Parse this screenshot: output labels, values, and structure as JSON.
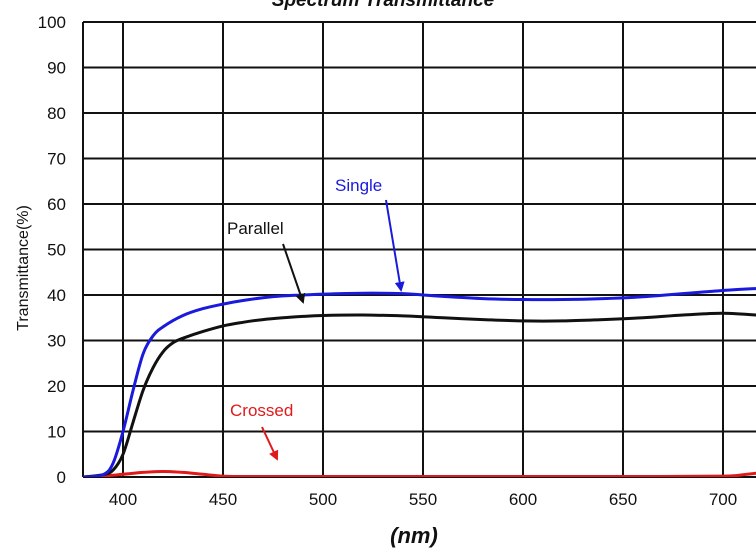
{
  "chart_data": {
    "type": "line",
    "title": "Spectrum Transmittance",
    "xlabel": "(nm)",
    "ylabel": "Transmittance(%)",
    "xlim": [
      380,
      720
    ],
    "ylim": [
      0,
      100
    ],
    "xticks": [
      400,
      450,
      500,
      550,
      600,
      650,
      700
    ],
    "yticks": [
      0,
      10,
      20,
      30,
      40,
      50,
      60,
      70,
      80,
      90,
      100
    ],
    "grid": true,
    "series": [
      {
        "name": "Single",
        "color": "#1a1adc",
        "x": [
          380,
          390,
          395,
          400,
          405,
          410,
          415,
          420,
          430,
          440,
          450,
          460,
          470,
          480,
          490,
          500,
          520,
          540,
          550,
          560,
          580,
          600,
          620,
          640,
          660,
          680,
          700,
          720
        ],
        "y": [
          0,
          0.5,
          3,
          10,
          19,
          27,
          31,
          33,
          35.5,
          37,
          38,
          38.8,
          39.4,
          39.8,
          40,
          40.2,
          40.4,
          40.3,
          40,
          39.7,
          39.2,
          39,
          39,
          39.2,
          39.6,
          40.3,
          41,
          41.5
        ]
      },
      {
        "name": "Parallel",
        "color": "#111111",
        "x": [
          380,
          390,
          395,
          400,
          405,
          410,
          415,
          420,
          425,
          430,
          440,
          450,
          460,
          470,
          480,
          490,
          500,
          520,
          540,
          560,
          580,
          600,
          620,
          640,
          660,
          680,
          700,
          720
        ],
        "y": [
          0,
          0.5,
          1.5,
          5,
          12,
          19,
          24,
          27.5,
          29.5,
          30.5,
          32,
          33.2,
          34,
          34.6,
          35,
          35.3,
          35.5,
          35.6,
          35.4,
          35,
          34.6,
          34.3,
          34.3,
          34.6,
          35,
          35.6,
          36,
          35.5
        ]
      },
      {
        "name": "Crossed",
        "color": "#e01a1a",
        "x": [
          380,
          390,
          400,
          410,
          420,
          430,
          440,
          450,
          460,
          500,
          550,
          600,
          650,
          700,
          710,
          720
        ],
        "y": [
          0,
          0.2,
          0.6,
          1,
          1.2,
          1.0,
          0.6,
          0.2,
          0.1,
          0.1,
          0.1,
          0.1,
          0.1,
          0.2,
          0.5,
          1.0
        ]
      }
    ],
    "annotations": [
      {
        "text": "Single",
        "series": "Single"
      },
      {
        "text": "Parallel",
        "series": "Parallel"
      },
      {
        "text": "Crossed",
        "series": "Crossed"
      }
    ]
  }
}
